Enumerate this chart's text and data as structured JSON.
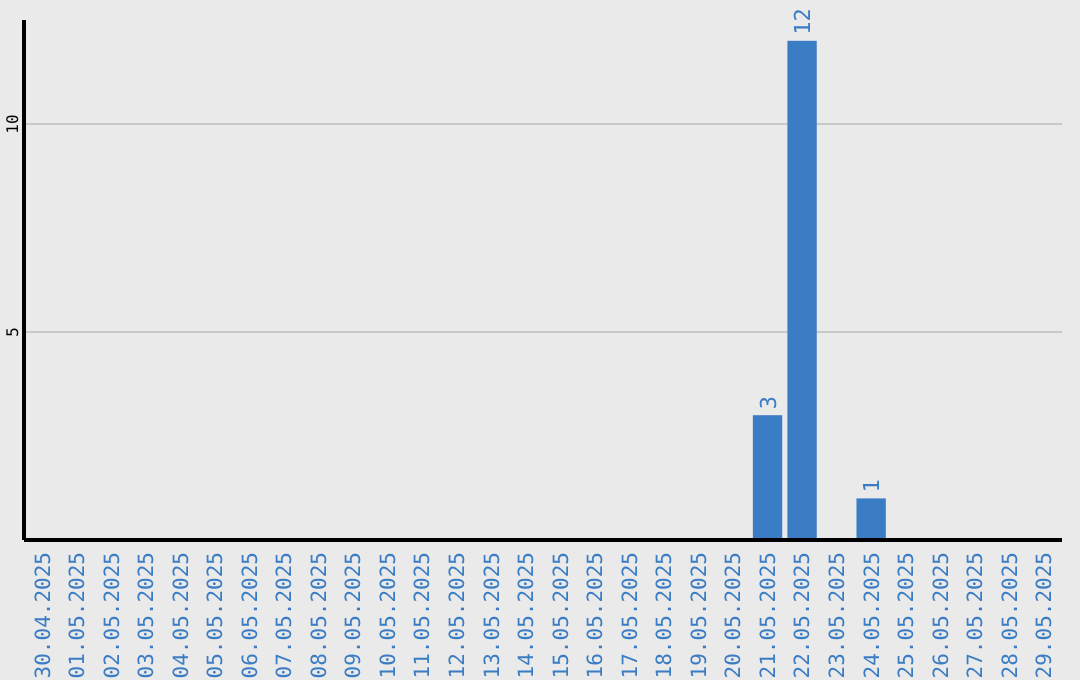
{
  "chart_data": {
    "type": "bar",
    "categories": [
      "30.04.2025",
      "01.05.2025",
      "02.05.2025",
      "03.05.2025",
      "04.05.2025",
      "05.05.2025",
      "06.05.2025",
      "07.05.2025",
      "08.05.2025",
      "09.05.2025",
      "10.05.2025",
      "11.05.2025",
      "12.05.2025",
      "13.05.2025",
      "14.05.2025",
      "15.05.2025",
      "16.05.2025",
      "17.05.2025",
      "18.05.2025",
      "19.05.2025",
      "20.05.2025",
      "21.05.2025",
      "22.05.2025",
      "23.05.2025",
      "24.05.2025",
      "25.05.2025",
      "26.05.2025",
      "27.05.2025",
      "28.05.2025",
      "29.05.2025"
    ],
    "values": [
      0,
      0,
      0,
      0,
      0,
      0,
      0,
      0,
      0,
      0,
      0,
      0,
      0,
      0,
      0,
      0,
      0,
      0,
      0,
      0,
      0,
      3,
      12,
      0,
      1,
      0,
      0,
      0,
      0,
      0
    ],
    "value_labels": [
      null,
      null,
      null,
      null,
      null,
      null,
      null,
      null,
      null,
      null,
      null,
      null,
      null,
      null,
      null,
      null,
      null,
      null,
      null,
      null,
      null,
      "3",
      "12",
      null,
      "1",
      null,
      null,
      null,
      null,
      null
    ],
    "color": "#3b7dc4",
    "ylim": [
      0,
      12.5
    ],
    "yticks": [
      5,
      10
    ],
    "grid": "y"
  }
}
